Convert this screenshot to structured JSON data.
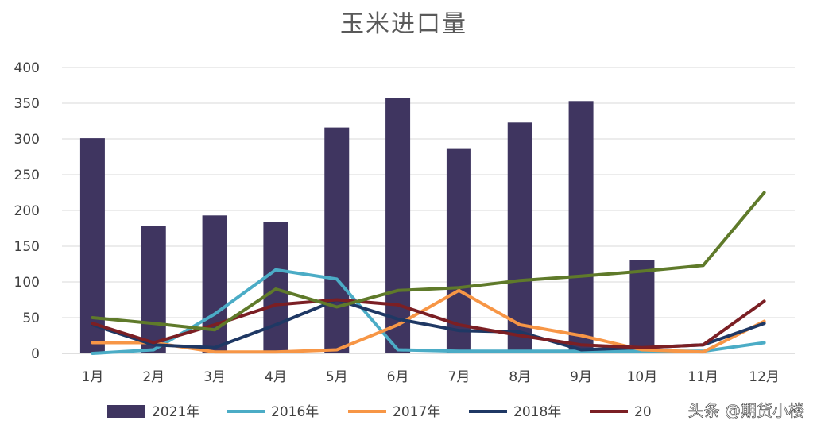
{
  "chart_data": {
    "type": "bar",
    "title": "玉米进口量",
    "categories": [
      "1月",
      "2月",
      "3月",
      "4月",
      "5月",
      "6月",
      "7月",
      "8月",
      "9月",
      "10月",
      "11月",
      "12月"
    ],
    "ylim": [
      0,
      400
    ],
    "yticks": [
      0,
      50,
      100,
      150,
      200,
      250,
      300,
      350,
      400
    ],
    "grid": true,
    "legend_position": "bottom",
    "series": [
      {
        "name": "2021年",
        "kind": "bar",
        "color": "#3f3560",
        "values": [
          301,
          178,
          193,
          184,
          316,
          357,
          286,
          323,
          353,
          130,
          null,
          null
        ]
      },
      {
        "name": "2016年",
        "kind": "line",
        "color": "#4bacc6",
        "values": [
          0,
          5,
          55,
          117,
          104,
          5,
          3,
          3,
          3,
          3,
          3,
          15
        ]
      },
      {
        "name": "2017年",
        "kind": "line",
        "color": "#f79646",
        "values": [
          15,
          15,
          2,
          2,
          5,
          40,
          88,
          40,
          25,
          5,
          2,
          45
        ]
      },
      {
        "name": "2018年",
        "kind": "line",
        "color": "#1f3864",
        "values": [
          40,
          12,
          8,
          40,
          75,
          48,
          32,
          30,
          5,
          8,
          12,
          42
        ]
      },
      {
        "name": "20",
        "kind": "line",
        "color": "#7b1f24",
        "values": [
          42,
          15,
          40,
          68,
          75,
          68,
          40,
          25,
          12,
          8,
          12,
          73
        ]
      },
      {
        "name": "",
        "kind": "line",
        "color": "#5f7a2a",
        "values": [
          50,
          42,
          33,
          90,
          65,
          88,
          92,
          102,
          108,
          115,
          123,
          225
        ]
      }
    ]
  },
  "watermark": "头条 @期货小楼"
}
